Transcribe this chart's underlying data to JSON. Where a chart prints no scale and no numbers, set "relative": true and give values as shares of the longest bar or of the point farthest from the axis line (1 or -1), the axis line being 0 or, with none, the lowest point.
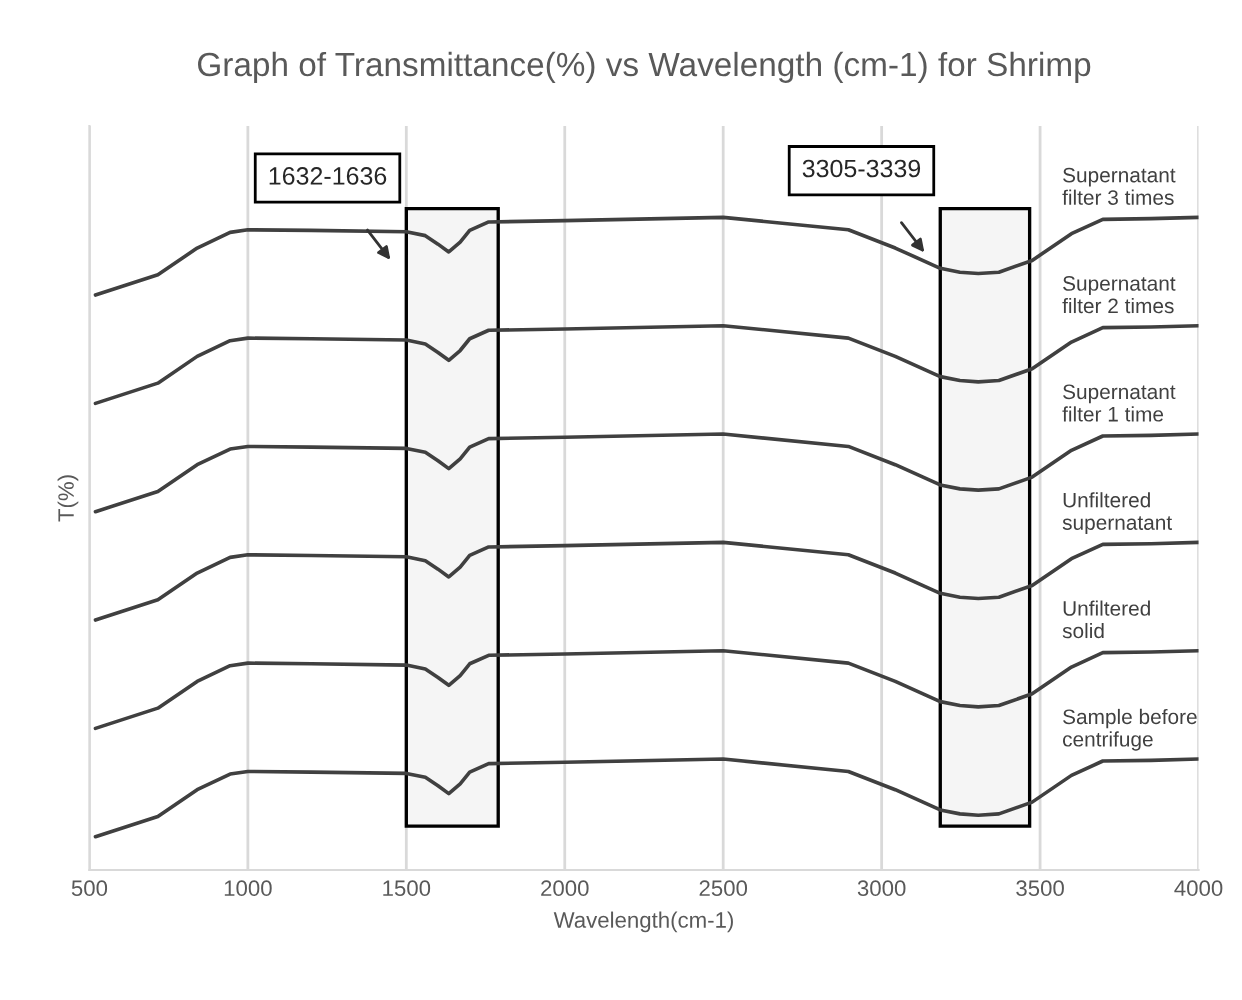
{
  "chart_data": {
    "type": "line",
    "title": "Graph of Transmittance(%) vs Wavelength (cm-1) for Shrimp",
    "xlabel": "Wavelength(cm-1)",
    "ylabel": "T(%)",
    "relative": true,
    "grid": "x",
    "xlim": [
      500,
      4000
    ],
    "xticks": [
      500,
      1000,
      1500,
      2000,
      2500,
      3000,
      3500,
      4000
    ],
    "x": [
      519,
      716,
      840,
      944,
      1000,
      1200,
      1500,
      1560,
      1600,
      1634,
      1670,
      1700,
      1760,
      2000,
      2500,
      2895,
      3043,
      3185,
      3247,
      3305,
      3370,
      3475,
      3599,
      3698,
      3850,
      4000
    ],
    "series": [
      {
        "name": "Supernatant filter 3 times",
        "color": "#404040",
        "values": [
          0.881,
          0.912,
          0.953,
          0.977,
          0.981,
          0.98,
          0.978,
          0.972,
          0.959,
          0.947,
          0.962,
          0.98,
          0.993,
          0.995,
          1.0,
          0.981,
          0.953,
          0.922,
          0.916,
          0.914,
          0.916,
          0.934,
          0.975,
          0.997,
          0.998,
          1.0
        ]
      },
      {
        "name": "Supernatant filter 2 times",
        "color": "#404040",
        "values": [
          0.715,
          0.746,
          0.787,
          0.811,
          0.815,
          0.814,
          0.812,
          0.806,
          0.793,
          0.781,
          0.796,
          0.814,
          0.827,
          0.829,
          0.834,
          0.815,
          0.787,
          0.756,
          0.75,
          0.748,
          0.75,
          0.768,
          0.809,
          0.831,
          0.832,
          0.834
        ]
      },
      {
        "name": "Supernatant filter 1 time",
        "color": "#404040",
        "values": [
          0.549,
          0.58,
          0.621,
          0.645,
          0.649,
          0.648,
          0.646,
          0.64,
          0.627,
          0.615,
          0.63,
          0.648,
          0.661,
          0.663,
          0.668,
          0.649,
          0.621,
          0.59,
          0.584,
          0.582,
          0.584,
          0.602,
          0.643,
          0.665,
          0.666,
          0.668
        ]
      },
      {
        "name": "Unfiltered supernatant",
        "color": "#404040",
        "values": [
          0.383,
          0.414,
          0.455,
          0.479,
          0.483,
          0.482,
          0.48,
          0.474,
          0.461,
          0.449,
          0.464,
          0.482,
          0.495,
          0.497,
          0.502,
          0.483,
          0.455,
          0.424,
          0.418,
          0.416,
          0.418,
          0.436,
          0.477,
          0.499,
          0.5,
          0.502
        ]
      },
      {
        "name": "Unfiltered solid",
        "color": "#404040",
        "values": [
          0.217,
          0.248,
          0.289,
          0.313,
          0.317,
          0.316,
          0.314,
          0.308,
          0.295,
          0.283,
          0.298,
          0.316,
          0.329,
          0.331,
          0.336,
          0.317,
          0.289,
          0.258,
          0.252,
          0.25,
          0.252,
          0.27,
          0.311,
          0.333,
          0.334,
          0.336
        ]
      },
      {
        "name": "Sample before centrifuge",
        "color": "#404040",
        "values": [
          0.051,
          0.082,
          0.123,
          0.147,
          0.151,
          0.15,
          0.148,
          0.142,
          0.129,
          0.117,
          0.132,
          0.15,
          0.163,
          0.165,
          0.17,
          0.151,
          0.123,
          0.092,
          0.086,
          0.084,
          0.086,
          0.104,
          0.145,
          0.167,
          0.168,
          0.17
        ]
      }
    ],
    "bands": [
      {
        "axis": "x",
        "from": 1500,
        "to": 1790,
        "label": "1632-1636",
        "color": "#000000"
      },
      {
        "axis": "x",
        "from": 3185,
        "to": 3467,
        "label": "3305-3339",
        "color": "#000000"
      }
    ]
  }
}
